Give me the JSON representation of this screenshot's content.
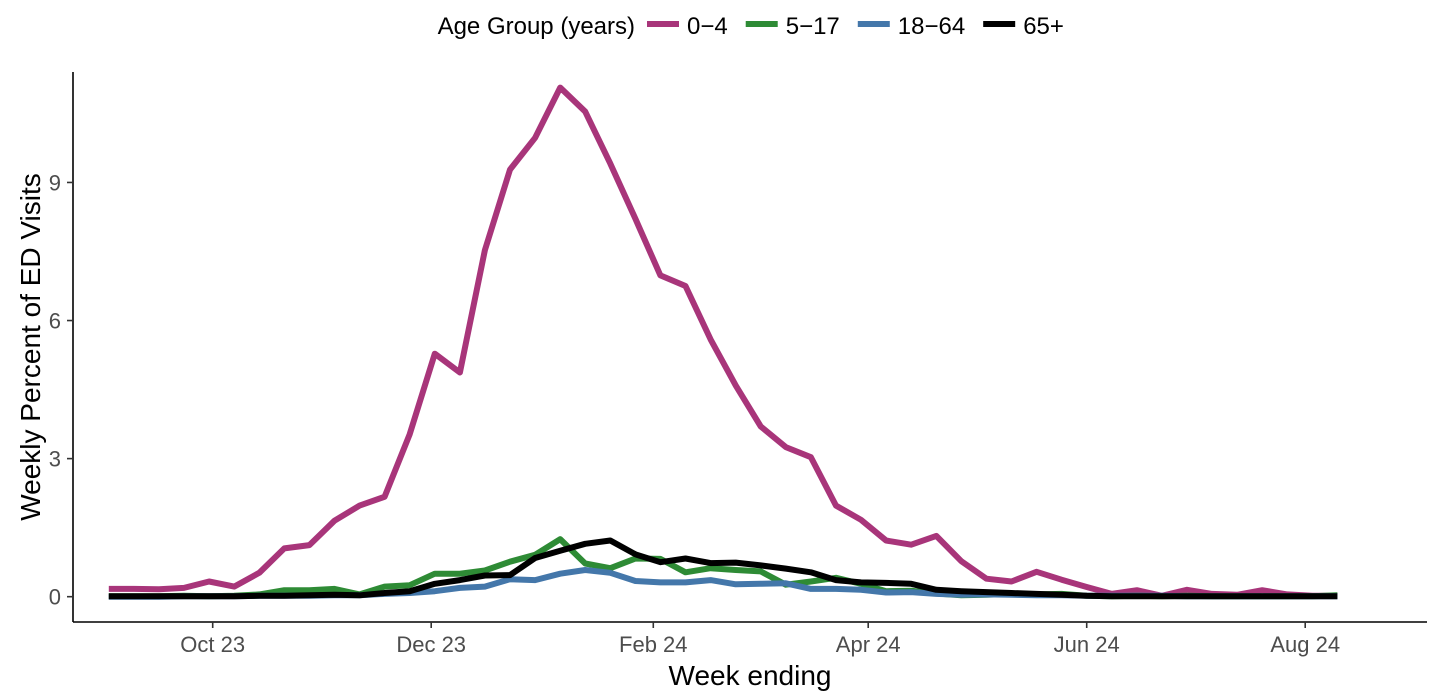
{
  "chart_data": {
    "type": "line",
    "title": "",
    "xlabel": "Week ending",
    "ylabel": "Weekly Percent of ED Visits",
    "legend_title": "Age Group (years)",
    "legend_position": "top",
    "grid": false,
    "x_start": "2023-09-02",
    "x_interval_days": 7,
    "x_ticks": [
      {
        "date": "2023-10-01",
        "label": "Oct 23"
      },
      {
        "date": "2023-12-01",
        "label": "Dec 23"
      },
      {
        "date": "2024-02-01",
        "label": "Feb 24"
      },
      {
        "date": "2024-04-01",
        "label": "Apr 24"
      },
      {
        "date": "2024-06-01",
        "label": "Jun 24"
      },
      {
        "date": "2024-08-01",
        "label": "Aug 24"
      }
    ],
    "xlim": [
      "2023-08-23",
      "2024-09-04"
    ],
    "y_ticks": [
      0,
      3,
      6,
      9
    ],
    "ylim": [
      -0.55,
      11.4
    ],
    "series": [
      {
        "name": "0−4",
        "color": "#a8357a",
        "values": [
          0.17,
          0.17,
          0.16,
          0.19,
          0.33,
          0.22,
          0.52,
          1.05,
          1.12,
          1.65,
          1.98,
          2.17,
          3.53,
          5.28,
          4.87,
          7.53,
          9.28,
          9.97,
          11.06,
          10.54,
          9.41,
          8.21,
          6.98,
          6.75,
          5.59,
          4.59,
          3.7,
          3.25,
          3.03,
          1.98,
          1.67,
          1.22,
          1.13,
          1.32,
          0.77,
          0.39,
          0.33,
          0.54,
          0.37,
          0.21,
          0.06,
          0.14,
          0.02,
          0.15,
          0.06,
          0.04,
          0.14,
          0.05,
          0.02,
          0.02
        ]
      },
      {
        "name": "5−17",
        "color": "#2e8b35",
        "values": [
          0.01,
          0.01,
          0.01,
          0.02,
          0.01,
          0.02,
          0.05,
          0.14,
          0.14,
          0.17,
          0.05,
          0.22,
          0.25,
          0.5,
          0.5,
          0.57,
          0.76,
          0.91,
          1.25,
          0.72,
          0.62,
          0.83,
          0.82,
          0.53,
          0.62,
          0.58,
          0.55,
          0.26,
          0.33,
          0.41,
          0.28,
          0.12,
          0.13,
          0.07,
          0.03,
          0.04,
          0.06,
          0.05,
          0.06,
          0.02,
          0.01,
          0.02,
          0.01,
          0.02,
          0.01,
          0.01,
          0.01,
          0.01,
          0.01,
          0.03
        ]
      },
      {
        "name": "18−64",
        "color": "#4477aa",
        "values": [
          0.0,
          0.0,
          0.0,
          0.01,
          0.01,
          0.01,
          0.02,
          0.02,
          0.02,
          0.03,
          0.03,
          0.06,
          0.08,
          0.12,
          0.19,
          0.22,
          0.38,
          0.36,
          0.5,
          0.58,
          0.52,
          0.34,
          0.31,
          0.31,
          0.36,
          0.27,
          0.28,
          0.29,
          0.17,
          0.17,
          0.15,
          0.09,
          0.1,
          0.06,
          0.04,
          0.05,
          0.04,
          0.03,
          0.03,
          0.02,
          0.02,
          0.02,
          0.02,
          0.01,
          0.01,
          0.01,
          0.01,
          0.01,
          0.01,
          0.01
        ]
      },
      {
        "name": "65+",
        "color": "#000000",
        "values": [
          0.01,
          0.01,
          0.01,
          0.01,
          0.01,
          0.01,
          0.02,
          0.02,
          0.03,
          0.04,
          0.03,
          0.08,
          0.12,
          0.28,
          0.36,
          0.46,
          0.47,
          0.84,
          1.0,
          1.15,
          1.22,
          0.92,
          0.75,
          0.83,
          0.73,
          0.74,
          0.68,
          0.61,
          0.53,
          0.36,
          0.31,
          0.3,
          0.28,
          0.15,
          0.12,
          0.1,
          0.08,
          0.06,
          0.04,
          0.02,
          0.01,
          0.01,
          0.01,
          0.01,
          0.01,
          0.01,
          0.01,
          0.01,
          0.01,
          0.01
        ]
      }
    ]
  }
}
